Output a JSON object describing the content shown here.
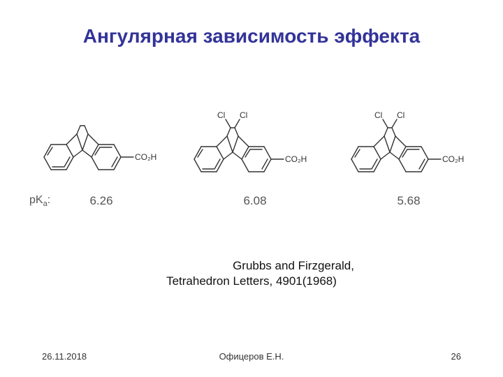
{
  "title": "Ангулярная зависимость эффекта",
  "citation_line1": "Grubbs and Firzgerald,",
  "citation_line2": "Tetrahedron Letters, 4901(1968)",
  "footer": {
    "date": "26.11.2018",
    "author": "Офицеров Е.Н.",
    "page": "26"
  },
  "pk_label_prefix": "pK",
  "pk_label_sub": "a",
  "pk_label_suffix": ":",
  "structures": [
    {
      "pka": "6.26",
      "has_cl": false,
      "co2h": "CO₂H"
    },
    {
      "pka": "6.08",
      "has_cl": true,
      "co2h": "CO₂H",
      "cl": "Cl"
    },
    {
      "pka": "5.68",
      "has_cl": true,
      "co2h": "CO₂H",
      "cl": "Cl"
    }
  ],
  "style": {
    "title_color": "#333399",
    "text_color": "#555555",
    "stroke": "#333333",
    "stroke_width": 1.4,
    "bg": "#ffffff",
    "title_fontsize": 28,
    "body_fontsize": 17
  }
}
